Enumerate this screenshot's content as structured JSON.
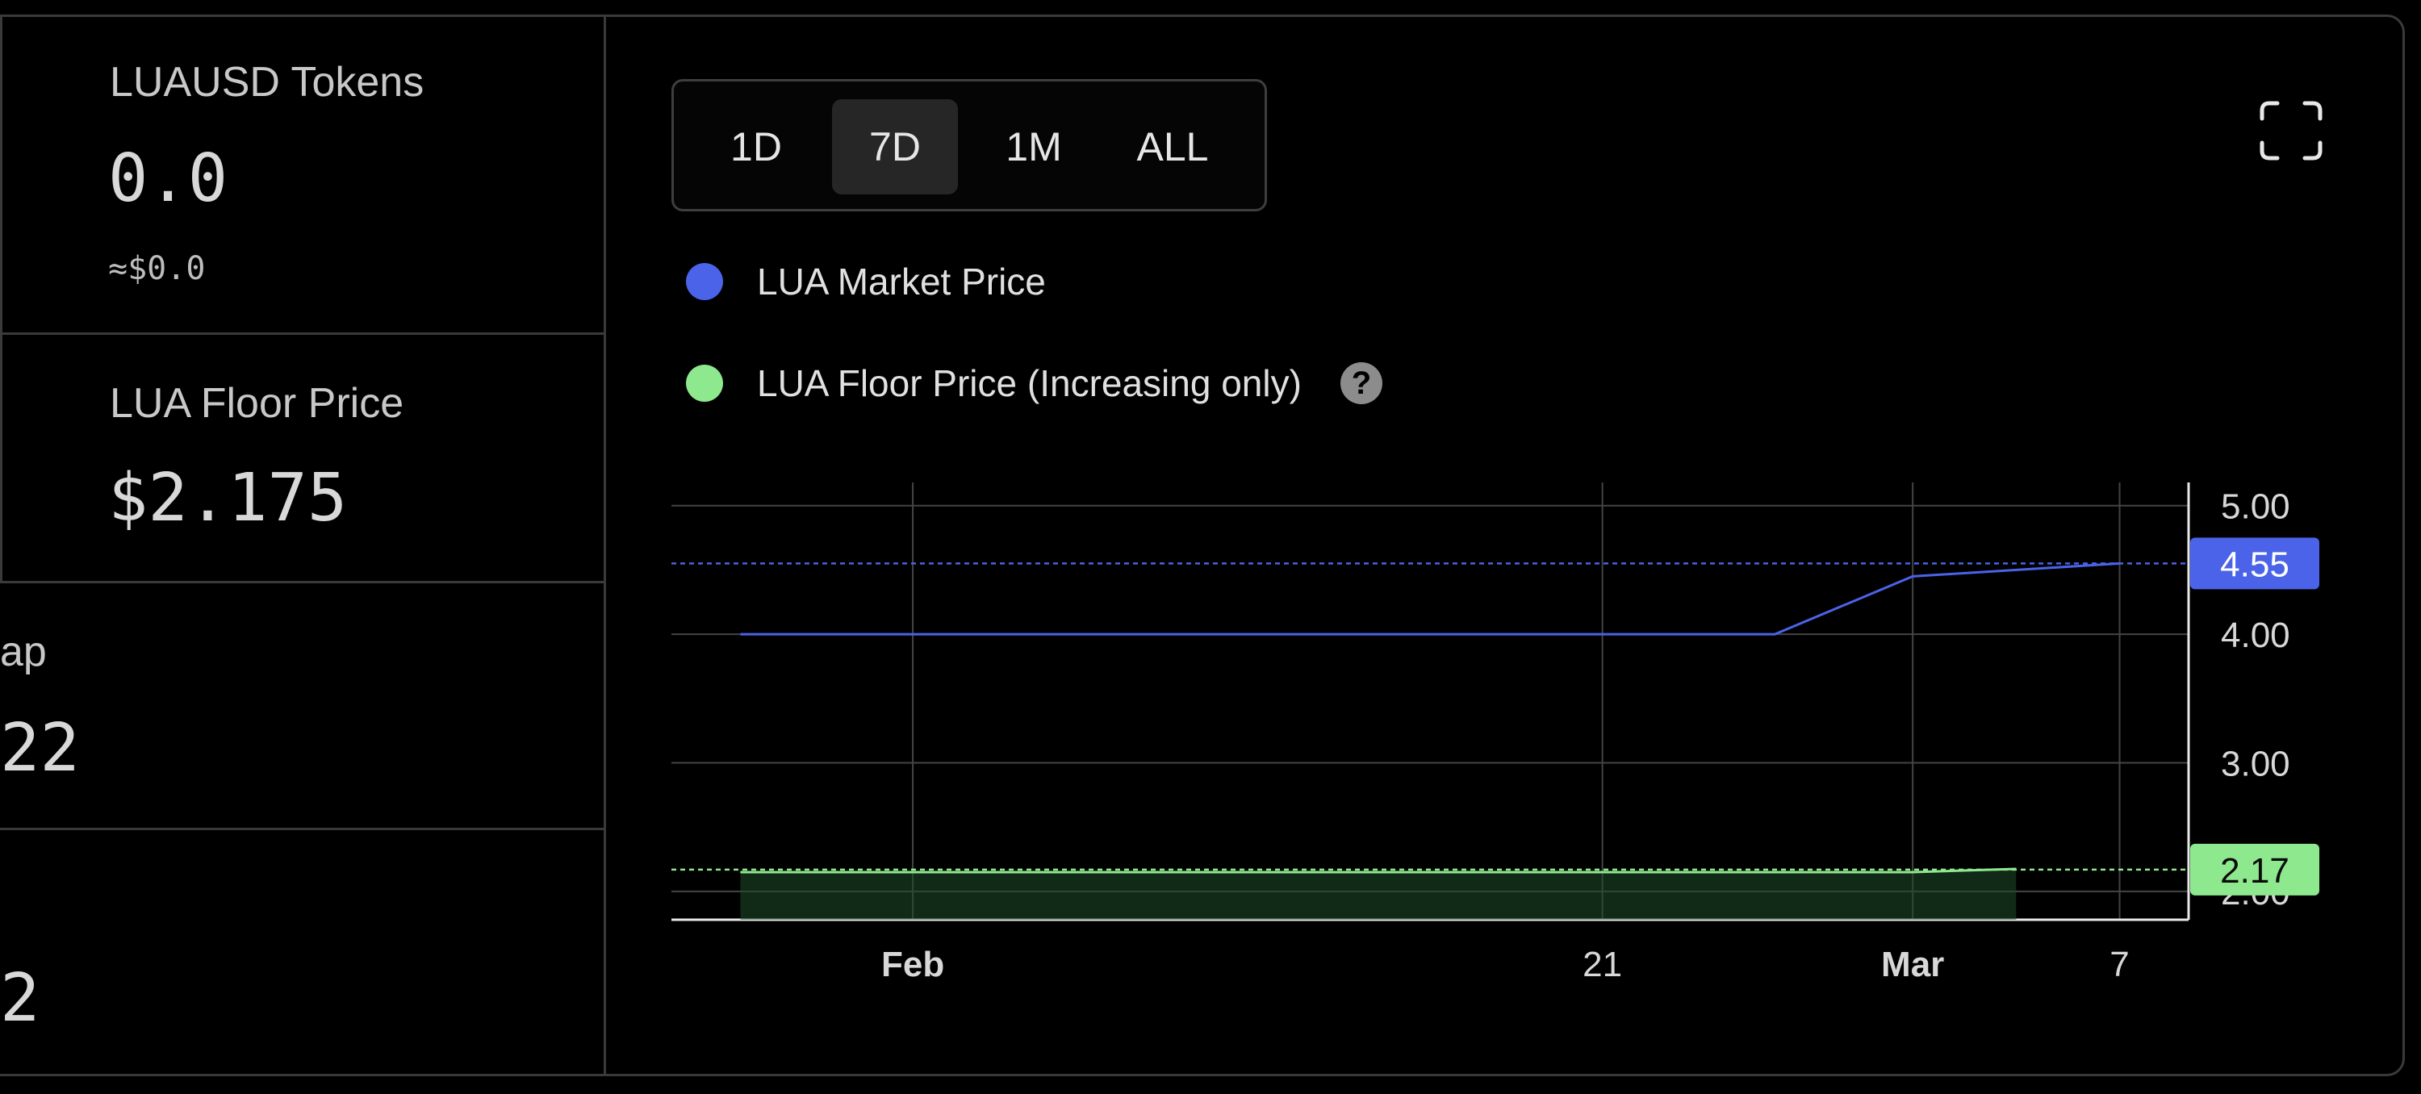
{
  "stats": {
    "tokens_label": "LUAUSD Tokens",
    "tokens_value": "0.0",
    "tokens_usd": "≈$0.0",
    "floor_label": "LUA Floor Price",
    "floor_value": "$2.175",
    "cap_label_partial": "ap",
    "cap_value_partial": "22",
    "fourth_value_partial": "2"
  },
  "range_buttons": [
    {
      "label": "1D",
      "active": false
    },
    {
      "label": "7D",
      "active": true
    },
    {
      "label": "1M",
      "active": false
    },
    {
      "label": "ALL",
      "active": false
    }
  ],
  "legend": [
    {
      "label": "LUA Market Price",
      "color": "#4a63e8"
    },
    {
      "label": "LUA Floor Price (Increasing only)",
      "color": "#8ee88e"
    }
  ],
  "help_glyph": "?",
  "chart_data": {
    "type": "line",
    "x_ticks": [
      {
        "label": "Feb",
        "date": "2024-02-01",
        "bold": true
      },
      {
        "label": "21",
        "date": "2024-02-21",
        "bold": false
      },
      {
        "label": "Mar",
        "date": "2024-03-01",
        "bold": true
      },
      {
        "label": "7",
        "date": "2024-03-07",
        "bold": false
      }
    ],
    "y_ticks": [
      "5.00",
      "4.00",
      "3.00",
      "2.00"
    ],
    "xlim": [
      "2024-01-25",
      "2024-03-09"
    ],
    "ylim": [
      1.78,
      5.18
    ],
    "grid": true,
    "series": [
      {
        "name": "LUA Market Price",
        "color": "#4a63e8",
        "points": [
          {
            "date": "2024-01-27",
            "value": 4.0
          },
          {
            "date": "2024-02-26",
            "value": 4.0
          },
          {
            "date": "2024-03-01",
            "value": 4.45
          },
          {
            "date": "2024-03-07",
            "value": 4.55
          }
        ],
        "last_value_label": "4.55"
      },
      {
        "name": "LUA Floor Price (Increasing only)",
        "color": "#8ee88e",
        "area": true,
        "points": [
          {
            "date": "2024-01-27",
            "value": 2.15
          },
          {
            "date": "2024-03-01",
            "value": 2.15
          },
          {
            "date": "2024-03-04",
            "value": 2.175
          }
        ],
        "last_value_label": "2.17"
      }
    ]
  }
}
